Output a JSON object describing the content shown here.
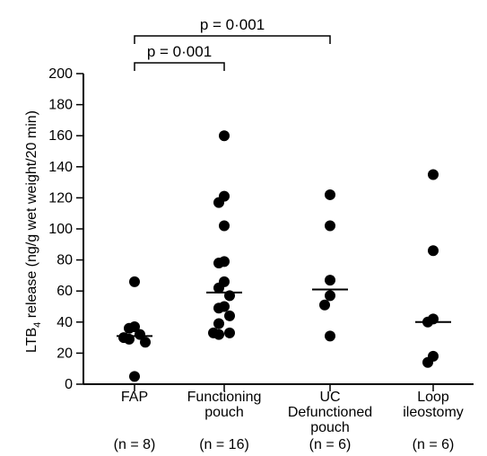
{
  "chart_data": {
    "type": "scatter",
    "ylabel_main": "LTB",
    "ylabel_sub": "4",
    "ylabel_rest": " release (ng/g wet weight/20 min)",
    "ylim": [
      0,
      200
    ],
    "yticks": [
      0,
      20,
      40,
      60,
      80,
      100,
      120,
      140,
      160,
      180,
      200
    ],
    "groups": [
      {
        "label_lines": [
          "FAP"
        ],
        "n_label": "(n = 8)",
        "median": 31,
        "values": [
          66,
          37,
          36,
          32,
          30,
          29,
          27,
          5
        ]
      },
      {
        "label_lines": [
          "Functioning",
          "pouch"
        ],
        "n_label": "(n = 16)",
        "median": 59,
        "values": [
          160,
          121,
          117,
          102,
          79,
          78,
          66,
          62,
          57,
          50,
          49,
          44,
          39,
          33,
          32,
          33
        ]
      },
      {
        "label_lines": [
          "UC",
          "Defunctioned",
          "pouch"
        ],
        "n_label": "(n = 6)",
        "median": 61,
        "values": [
          122,
          102,
          67,
          57,
          51,
          31
        ]
      },
      {
        "label_lines": [
          "Loop",
          "ileostomy"
        ],
        "n_label": "(n = 6)",
        "median": 40,
        "values": [
          135,
          86,
          42,
          40,
          18,
          14
        ]
      }
    ],
    "annotations": [
      {
        "text": "p = 0·001",
        "from_group": 0,
        "to_group": 1
      },
      {
        "text": "p = 0·001",
        "from_group": 0,
        "to_group": 2
      }
    ]
  }
}
